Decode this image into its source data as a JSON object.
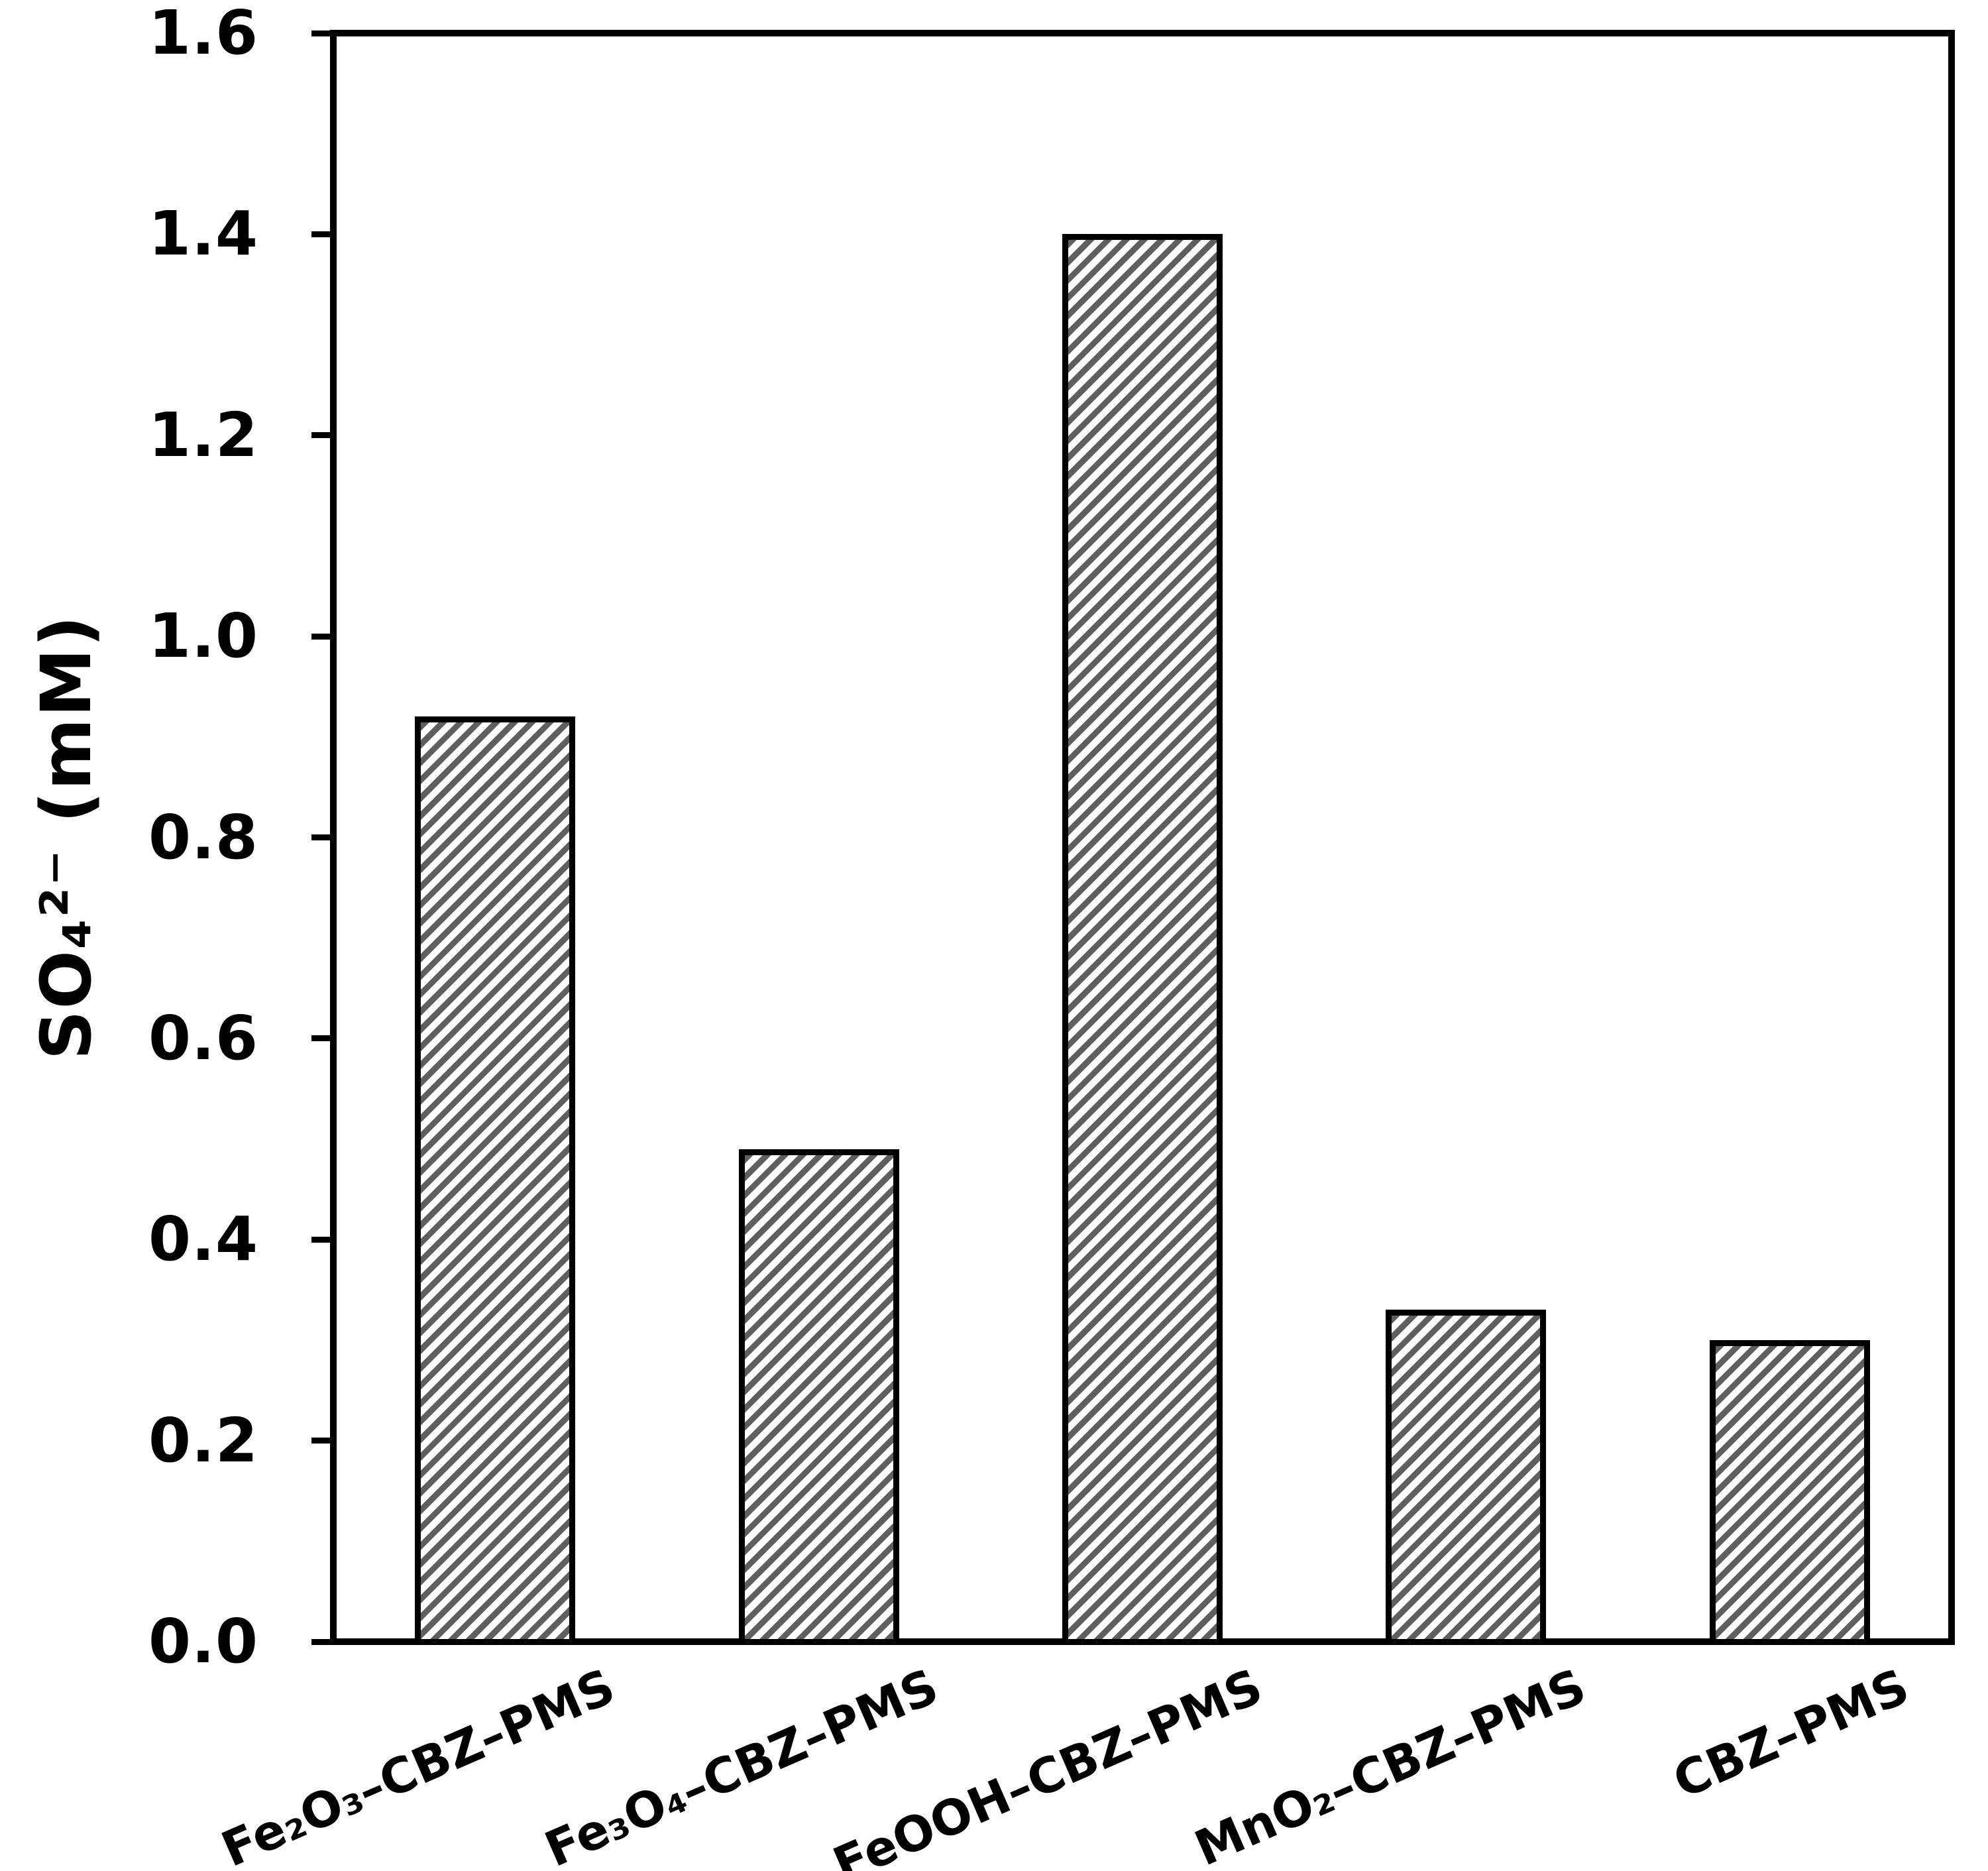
{
  "figure": {
    "background_color": "#ffffff",
    "axis_color": "#000000",
    "bar_border_color": "#000000",
    "bar_fill_color": "#ffffff",
    "hatch_color": "#5f5f5f",
    "hatch_style": "diagonal-forward-slash"
  },
  "chart_data": {
    "type": "bar",
    "title": "",
    "xlabel": "",
    "ylabel": "SO₄²⁻ (mM)",
    "categories": [
      "Fe₂O₃–CBZ–PMS",
      "Fe₃O₄–CBZ–PMS",
      "FeOOH–CBZ–PMS",
      "MnO₂–CBZ–PMS",
      "CBZ–PMS"
    ],
    "values": [
      0.92,
      0.49,
      1.4,
      0.33,
      0.3
    ],
    "ylim": [
      0.0,
      1.6
    ],
    "ytick_labels": [
      "0.0",
      "0.2",
      "0.4",
      "0.6",
      "0.8",
      "1.0",
      "1.2",
      "1.4",
      "1.6"
    ],
    "grid": "off",
    "legend": "none",
    "x_tick_label_rotation_deg": 23.5
  }
}
